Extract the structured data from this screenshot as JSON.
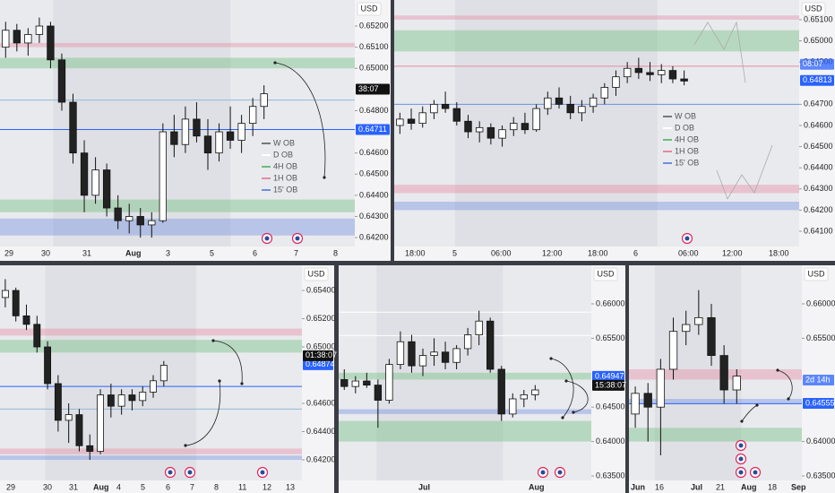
{
  "chart_data": [
    {
      "type": "candlestick",
      "currency": "USD",
      "ylim": [
        0.64158,
        0.65323
      ],
      "yticks": [
        {
          "value": 0.652,
          "label": "0.65200"
        },
        {
          "value": 0.651,
          "label": "0.65100"
        },
        {
          "value": 0.65,
          "label": "0.65000"
        },
        {
          "value": 0.648,
          "label": "0.64800"
        },
        {
          "value": 0.646,
          "label": "0.64600"
        },
        {
          "value": 0.645,
          "label": "0.64500"
        },
        {
          "value": 0.644,
          "label": "0.64400"
        },
        {
          "value": 0.643,
          "label": "0.64300"
        },
        {
          "value": 0.642,
          "label": "0.64200"
        }
      ],
      "x_labels": [
        "29",
        "30",
        "31",
        "Aug",
        "3",
        "5",
        "6",
        "7",
        "8"
      ],
      "open": [
        0.651,
        0.6518,
        0.6512,
        0.6516,
        0.652,
        0.6504,
        0.6484,
        0.646,
        0.644,
        0.6452,
        0.6434,
        0.6428,
        0.643,
        0.6426,
        0.6428,
        0.647,
        0.6464,
        0.6476,
        0.6468,
        0.646,
        0.647,
        0.6466,
        0.6474,
        0.6482
      ],
      "high": [
        0.6522,
        0.6521,
        0.6519,
        0.6524,
        0.6522,
        0.6507,
        0.6488,
        0.6466,
        0.6458,
        0.6455,
        0.644,
        0.6436,
        0.6434,
        0.6432,
        0.6474,
        0.6478,
        0.6482,
        0.6484,
        0.6476,
        0.6474,
        0.6482,
        0.6478,
        0.6486,
        0.6492
      ],
      "low": [
        0.6505,
        0.6508,
        0.6506,
        0.6512,
        0.65,
        0.648,
        0.6455,
        0.6432,
        0.6436,
        0.643,
        0.6424,
        0.6422,
        0.642,
        0.642,
        0.6427,
        0.6458,
        0.646,
        0.6465,
        0.6452,
        0.6456,
        0.6462,
        0.646,
        0.6468,
        0.6476
      ],
      "close": [
        0.6518,
        0.6512,
        0.6516,
        0.652,
        0.6504,
        0.6484,
        0.646,
        0.644,
        0.6452,
        0.6434,
        0.6428,
        0.643,
        0.6426,
        0.6428,
        0.647,
        0.6464,
        0.6476,
        0.6468,
        0.646,
        0.647,
        0.6466,
        0.6474,
        0.6482,
        0.6488
      ],
      "zones": [
        {
          "from": 0.651,
          "to": 0.6512,
          "color": "#e58aa0"
        },
        {
          "from": 0.65,
          "to": 0.6505,
          "color": "#6bbf7a"
        },
        {
          "from": 0.6432,
          "to": 0.6438,
          "color": "#6bbf7a"
        },
        {
          "from": 0.6421,
          "to": 0.6429,
          "color": "#6e8ee0"
        }
      ],
      "lines": [
        {
          "value": 0.64711,
          "color": "#2962ff"
        },
        {
          "value": 0.6485,
          "color": "#8fb9d6"
        }
      ],
      "price_labels": [
        {
          "value": 0.64711,
          "label": "0.64711",
          "color": "#2962ff"
        }
      ],
      "countdown": "38:07",
      "legend": [
        {
          "name": "W OB",
          "color": "#777777"
        },
        {
          "name": "D OB",
          "color": "#ffffff"
        },
        {
          "name": "4H OB",
          "color": "#6bbf7a"
        },
        {
          "name": "1H OB",
          "color": "#e58aa0"
        },
        {
          "name": "15' OB",
          "color": "#6e8ee0"
        }
      ]
    },
    {
      "type": "candlestick",
      "currency": "USD",
      "ylim": [
        0.64028,
        0.65193
      ],
      "yticks": [
        {
          "value": 0.651,
          "label": "0.65100"
        },
        {
          "value": 0.65,
          "label": "0.65000"
        },
        {
          "value": 0.649,
          "label": "0.64900"
        },
        {
          "value": 0.647,
          "label": "0.64700"
        },
        {
          "value": 0.646,
          "label": "0.64600"
        },
        {
          "value": 0.645,
          "label": "0.64500"
        },
        {
          "value": 0.644,
          "label": "0.64400"
        },
        {
          "value": 0.643,
          "label": "0.64300"
        },
        {
          "value": 0.642,
          "label": "0.64200"
        },
        {
          "value": 0.641,
          "label": "0.64100"
        }
      ],
      "x_labels": [
        "18:00",
        "5",
        "06:00",
        "12:00",
        "18:00",
        "6",
        "06:00",
        "12:00",
        "18:00"
      ],
      "open": [
        0.646,
        0.6463,
        0.6461,
        0.6466,
        0.647,
        0.6468,
        0.6462,
        0.6457,
        0.6459,
        0.6454,
        0.6458,
        0.6461,
        0.6458,
        0.6468,
        0.6473,
        0.647,
        0.6466,
        0.6469,
        0.6473,
        0.6478,
        0.6483,
        0.6487,
        0.6485,
        0.6484,
        0.6486,
        0.6482
      ],
      "high": [
        0.6466,
        0.6468,
        0.6469,
        0.6472,
        0.6476,
        0.6471,
        0.6465,
        0.6462,
        0.6461,
        0.646,
        0.6464,
        0.6466,
        0.647,
        0.6476,
        0.6478,
        0.6474,
        0.6472,
        0.6475,
        0.648,
        0.6486,
        0.649,
        0.6492,
        0.649,
        0.6489,
        0.6488,
        0.6486
      ],
      "low": [
        0.6456,
        0.6458,
        0.6459,
        0.6463,
        0.6466,
        0.646,
        0.6454,
        0.6452,
        0.6451,
        0.645,
        0.6455,
        0.6456,
        0.6457,
        0.6465,
        0.6468,
        0.6463,
        0.6462,
        0.6466,
        0.647,
        0.6474,
        0.648,
        0.6482,
        0.6481,
        0.648,
        0.648,
        0.6479
      ],
      "close": [
        0.6463,
        0.6461,
        0.6466,
        0.647,
        0.6468,
        0.6462,
        0.6457,
        0.6459,
        0.6454,
        0.6458,
        0.6461,
        0.6458,
        0.6468,
        0.6473,
        0.647,
        0.6466,
        0.6469,
        0.6473,
        0.6478,
        0.6483,
        0.6487,
        0.6485,
        0.6484,
        0.6486,
        0.6482,
        0.6481
      ],
      "zones": [
        {
          "from": 0.651,
          "to": 0.6512,
          "color": "#e58aa0"
        },
        {
          "from": 0.6495,
          "to": 0.6505,
          "color": "#6bbf7a"
        },
        {
          "from": 0.6428,
          "to": 0.6432,
          "color": "#e58aa0"
        },
        {
          "from": 0.642,
          "to": 0.6424,
          "color": "#6e8ee0"
        }
      ],
      "lines": [
        {
          "value": 0.6488,
          "color": "#e58aa0"
        },
        {
          "value": 0.647,
          "color": "#6e8ee0"
        }
      ],
      "price_labels": [
        {
          "value": 0.64813,
          "label": "0.64813",
          "color": "#2962ff"
        }
      ],
      "countdown": "08:07",
      "legend": [
        {
          "name": "W OB",
          "color": "#777777"
        },
        {
          "name": "D OB",
          "color": "#ffffff"
        },
        {
          "name": "4H OB",
          "color": "#6bbf7a"
        },
        {
          "name": "1H OB",
          "color": "#e58aa0"
        },
        {
          "name": "15' OB",
          "color": "#6e8ee0"
        }
      ]
    },
    {
      "type": "candlestick",
      "currency": "USD",
      "ylim": [
        0.64054,
        0.65578
      ],
      "yticks": [
        {
          "value": 0.654,
          "label": "0.65400"
        },
        {
          "value": 0.652,
          "label": "0.65200"
        },
        {
          "value": 0.65,
          "label": "0.65000"
        },
        {
          "value": 0.646,
          "label": "0.64600"
        },
        {
          "value": 0.644,
          "label": "0.64400"
        },
        {
          "value": 0.642,
          "label": "0.64200"
        }
      ],
      "x_labels": [
        "29",
        "30",
        "31",
        "Aug",
        "4",
        "5",
        "6",
        "7",
        "8",
        "11",
        "12",
        "13"
      ],
      "open": [
        0.6535,
        0.654,
        0.6522,
        0.6516,
        0.65,
        0.6474,
        0.6448,
        0.6452,
        0.643,
        0.6426,
        0.6466,
        0.6458,
        0.6466,
        0.6462,
        0.6468,
        0.6476
      ],
      "high": [
        0.6548,
        0.6542,
        0.653,
        0.6522,
        0.6504,
        0.648,
        0.646,
        0.6456,
        0.6438,
        0.647,
        0.6474,
        0.647,
        0.647,
        0.6472,
        0.648,
        0.649
      ],
      "low": [
        0.6528,
        0.6518,
        0.6512,
        0.6496,
        0.647,
        0.644,
        0.6432,
        0.6426,
        0.642,
        0.6424,
        0.645,
        0.6452,
        0.6455,
        0.6458,
        0.6464,
        0.6472
      ],
      "close": [
        0.654,
        0.6522,
        0.6516,
        0.65,
        0.6474,
        0.6448,
        0.6452,
        0.643,
        0.6426,
        0.6466,
        0.6458,
        0.6466,
        0.6462,
        0.6468,
        0.6476,
        0.6487
      ],
      "zones": [
        {
          "from": 0.6508,
          "to": 0.6513,
          "color": "#e58aa0"
        },
        {
          "from": 0.6496,
          "to": 0.6505,
          "color": "#6bbf7a"
        },
        {
          "from": 0.6424,
          "to": 0.6428,
          "color": "#e58aa0"
        },
        {
          "from": 0.642,
          "to": 0.6423,
          "color": "#6e8ee0"
        }
      ],
      "lines": [
        {
          "value": 0.6472,
          "color": "#2962ff"
        },
        {
          "value": 0.6456,
          "color": "#8fb9d6"
        }
      ],
      "price_labels": [
        {
          "value": 0.64874,
          "label": "0.64874",
          "color": "#2962ff"
        }
      ],
      "countdown": "01:38:07"
    },
    {
      "type": "candlestick",
      "currency": "USD",
      "ylim": [
        0.63435,
        0.6656
      ],
      "yticks": [
        {
          "value": 0.66,
          "label": "0.66000"
        },
        {
          "value": 0.655,
          "label": "0.65500"
        },
        {
          "value": 0.645,
          "label": "0.64500"
        },
        {
          "value": 0.64,
          "label": "0.64000"
        },
        {
          "value": 0.635,
          "label": "0.63500"
        }
      ],
      "x_labels": [
        "Jul",
        "Aug"
      ],
      "open": [
        0.649,
        0.648,
        0.6488,
        0.6482,
        0.646,
        0.6512,
        0.6545,
        0.651,
        0.6525,
        0.653,
        0.6515,
        0.6535,
        0.6555,
        0.6575,
        0.6505,
        0.644,
        0.6462,
        0.6468
      ],
      "high": [
        0.6505,
        0.6495,
        0.65,
        0.649,
        0.652,
        0.656,
        0.6555,
        0.6535,
        0.655,
        0.6545,
        0.654,
        0.6565,
        0.659,
        0.658,
        0.651,
        0.647,
        0.6475,
        0.6482
      ],
      "low": [
        0.6475,
        0.647,
        0.6478,
        0.642,
        0.6455,
        0.6505,
        0.65,
        0.6495,
        0.651,
        0.6505,
        0.6505,
        0.6525,
        0.654,
        0.65,
        0.643,
        0.6435,
        0.645,
        0.646
      ],
      "close": [
        0.648,
        0.6488,
        0.6482,
        0.646,
        0.6512,
        0.6545,
        0.651,
        0.6525,
        0.653,
        0.6515,
        0.6535,
        0.6555,
        0.6575,
        0.6505,
        0.644,
        0.6462,
        0.6468,
        0.6475
      ],
      "zones": [
        {
          "from": 0.64,
          "to": 0.643,
          "color": "#6bbf7a"
        },
        {
          "from": 0.644,
          "to": 0.6447,
          "color": "#6e8ee0"
        },
        {
          "from": 0.649,
          "to": 0.65,
          "color": "#6bbf7a"
        }
      ],
      "lines": [
        {
          "value": 0.6588,
          "color": "#ffffff"
        },
        {
          "value": 0.6554,
          "color": "#ffffff"
        }
      ],
      "price_labels": [
        {
          "value": 0.64947,
          "label": "0.64947",
          "color": "#2962ff"
        }
      ],
      "countdown": "15:38:07"
    },
    {
      "type": "candlestick",
      "currency": "USD",
      "ylim": [
        0.63435,
        0.6656
      ],
      "yticks": [
        {
          "value": 0.66,
          "label": "0.66000"
        },
        {
          "value": 0.655,
          "label": "0.65500"
        },
        {
          "value": 0.64,
          "label": "0.64000"
        },
        {
          "value": 0.635,
          "label": "0.63500"
        }
      ],
      "x_labels": [
        "Jun",
        "16",
        "Jul",
        "21",
        "Aug",
        "18",
        "Sep"
      ],
      "open": [
        0.644,
        0.647,
        0.645,
        0.6505,
        0.656,
        0.657,
        0.658,
        0.6525,
        0.6475
      ],
      "high": [
        0.648,
        0.6485,
        0.652,
        0.658,
        0.659,
        0.662,
        0.66,
        0.654,
        0.6505
      ],
      "low": [
        0.642,
        0.64,
        0.638,
        0.649,
        0.654,
        0.6555,
        0.651,
        0.6455,
        0.6455
      ],
      "close": [
        0.647,
        0.645,
        0.6505,
        0.656,
        0.657,
        0.658,
        0.6525,
        0.6475,
        0.6495
      ],
      "zones": [
        {
          "from": 0.64,
          "to": 0.642,
          "color": "#6bbf7a"
        },
        {
          "from": 0.6455,
          "to": 0.6462,
          "color": "#6e8ee0"
        },
        {
          "from": 0.649,
          "to": 0.6505,
          "color": "#e58aa0"
        }
      ],
      "lines": [
        {
          "value": 0.6455,
          "color": "#2962ff"
        }
      ],
      "price_labels": [
        {
          "value": 0.64555,
          "label": "0.64555",
          "color": "#2962ff"
        }
      ],
      "countdown": "2d 14h"
    }
  ]
}
